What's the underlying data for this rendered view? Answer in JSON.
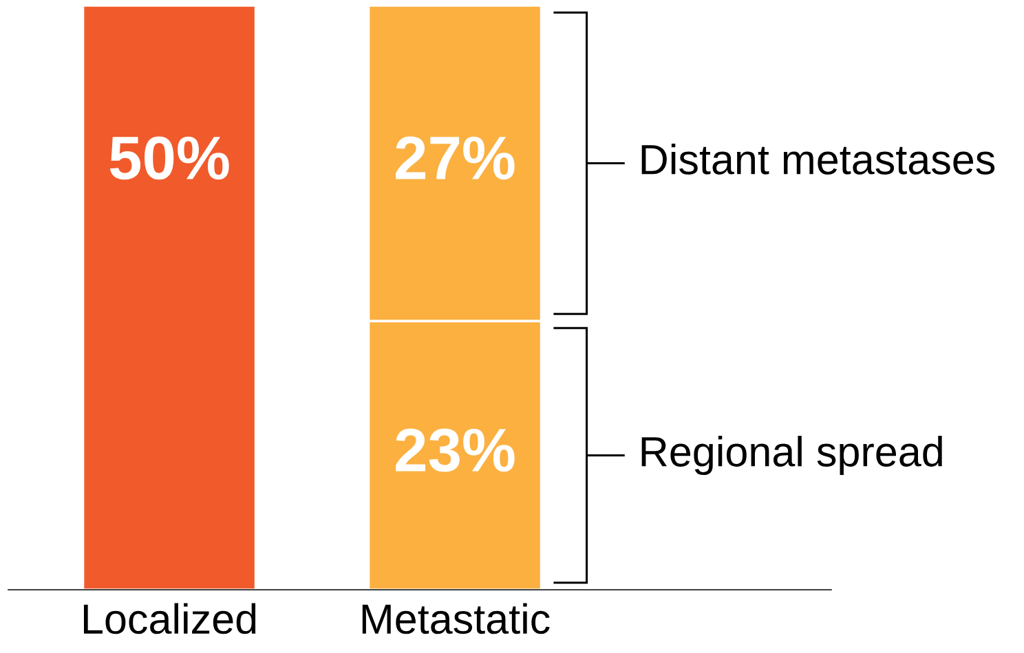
{
  "chart_data": {
    "type": "bar",
    "stacked": true,
    "tick_labels": "x",
    "categories": [
      "Localized",
      "Metastatic"
    ],
    "series": [
      {
        "color": "#f15a2b",
        "values": [
          50,
          null
        ],
        "value_labels": [
          "50%",
          null
        ]
      },
      {
        "name": "Regional spread",
        "color": "#fbb040",
        "values": [
          null,
          23
        ],
        "value_labels": [
          null,
          "23%"
        ]
      },
      {
        "name": "Distant metastases",
        "color": "#fbb040",
        "values": [
          null,
          27
        ],
        "value_labels": [
          null,
          "27%"
        ]
      }
    ]
  }
}
